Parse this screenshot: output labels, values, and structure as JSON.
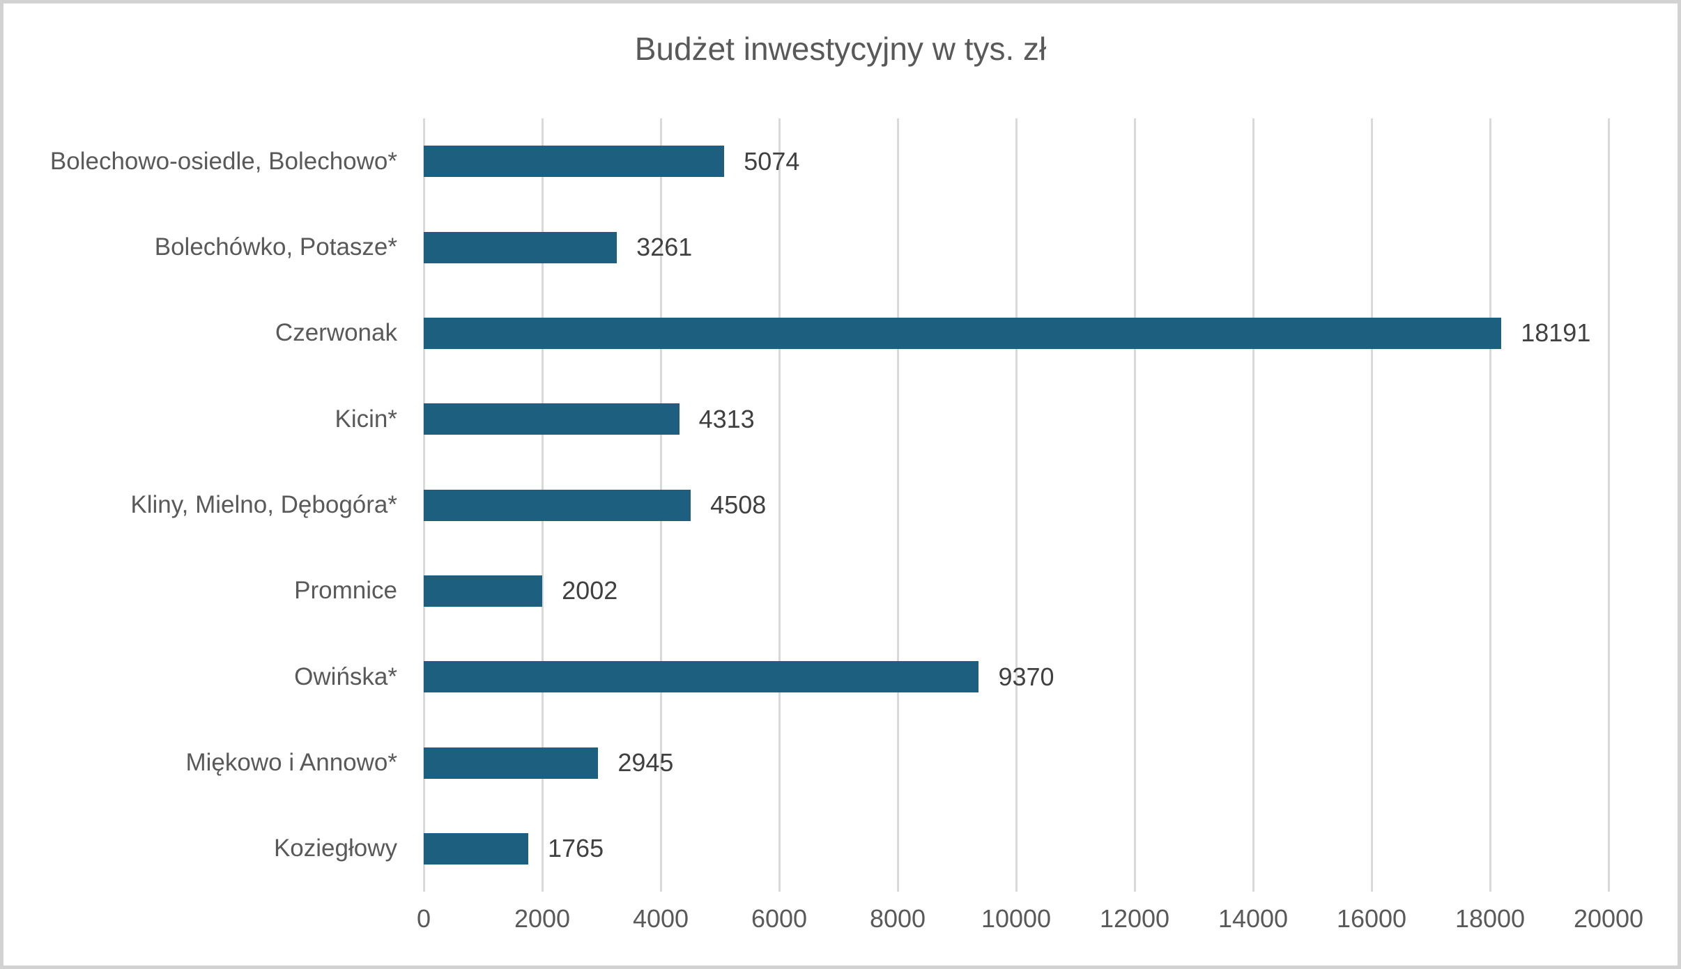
{
  "title": "Budżet inwestycyjny w tys. zł",
  "chart_data": {
    "type": "bar",
    "orientation": "horizontal",
    "title": "Budżet inwestycyjny w tys. zł",
    "categories": [
      "Bolechowo-osiedle, Bolechowo*",
      "Bolechówko, Potasze*",
      "Czerwonak",
      "Kicin*",
      "Kliny, Mielno, Dębogóra*",
      "Promnice",
      "Owińska*",
      "Miękowo i Annowo*",
      "Koziegłowy"
    ],
    "values": [
      5074,
      3261,
      18191,
      4313,
      4508,
      2002,
      9370,
      2945,
      1765
    ],
    "data_labels": [
      "5074",
      "3261",
      "18191",
      "4313",
      "4508",
      "2002",
      "9370",
      "2945",
      "1765"
    ],
    "xlabel": "",
    "ylabel": "",
    "xlim": [
      0,
      20000
    ],
    "xticks": [
      "0",
      "2000",
      "4000",
      "6000",
      "8000",
      "10000",
      "12000",
      "14000",
      "16000",
      "18000",
      "20000"
    ],
    "grid": true,
    "legend": false,
    "colors": {
      "bar_fill": "#1C5F7F",
      "gridline": "#D9D9D9",
      "category_label": "#595959",
      "value_label": "#404040",
      "tick_label": "#595959",
      "title": "#595959",
      "frame_border": "#D2D2D2",
      "background": "#FFFFFF"
    }
  }
}
